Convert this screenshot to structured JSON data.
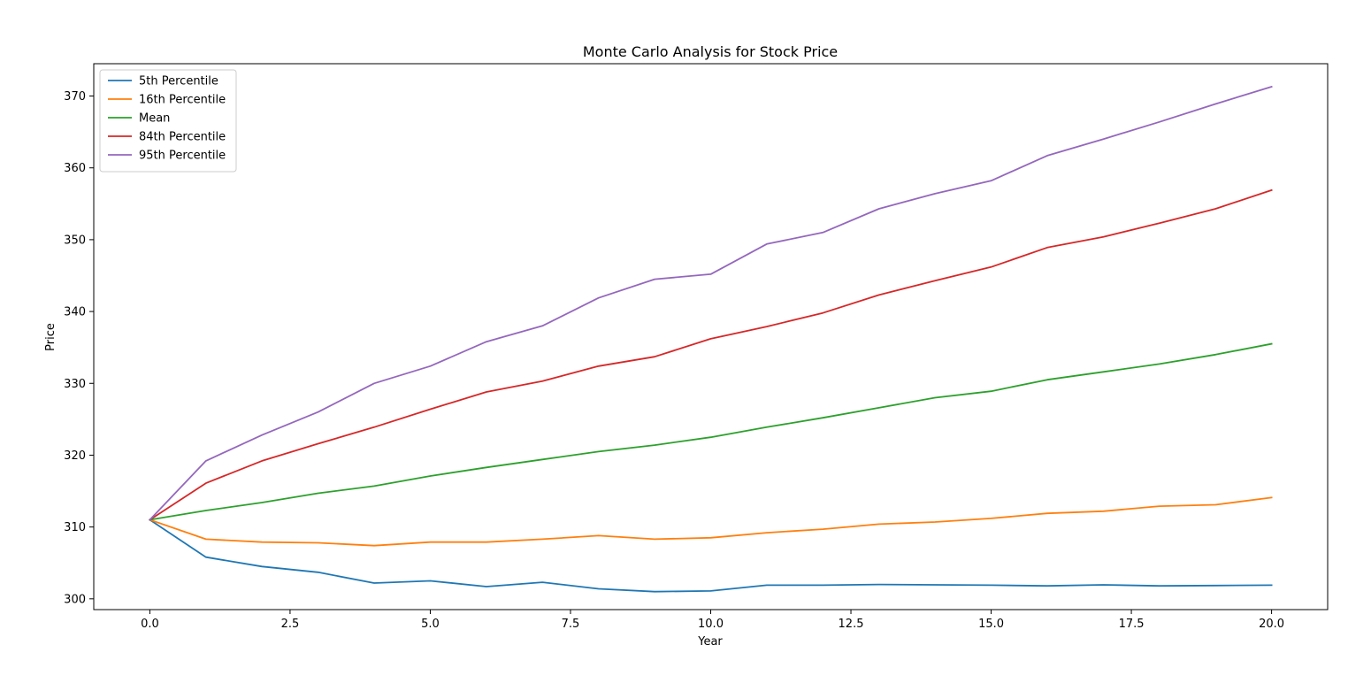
{
  "chart_data": {
    "type": "line",
    "title": "Monte Carlo Analysis for Stock Price",
    "xlabel": "Year",
    "ylabel": "Price",
    "xlim": [
      -1.0,
      21.0
    ],
    "ylim": [
      298.5,
      374.5
    ],
    "xticks": [
      0.0,
      2.5,
      5.0,
      7.5,
      10.0,
      12.5,
      15.0,
      17.5,
      20.0
    ],
    "xtick_labels": [
      "0.0",
      "2.5",
      "5.0",
      "7.5",
      "10.0",
      "12.5",
      "15.0",
      "17.5",
      "20.0"
    ],
    "yticks": [
      300,
      310,
      320,
      330,
      340,
      350,
      360,
      370
    ],
    "ytick_labels": [
      "300",
      "310",
      "320",
      "330",
      "340",
      "350",
      "360",
      "370"
    ],
    "grid": false,
    "legend_position": "top-left",
    "x": [
      0,
      1,
      2,
      3,
      4,
      5,
      6,
      7,
      8,
      9,
      10,
      11,
      12,
      13,
      14,
      15,
      16,
      17,
      18,
      19,
      20
    ],
    "series": [
      {
        "name": "5th Percentile",
        "color": "#1f77b4",
        "values": [
          311.0,
          305.8,
          304.5,
          303.7,
          302.2,
          302.5,
          301.7,
          302.3,
          301.4,
          301.0,
          301.1,
          301.9,
          301.9,
          302.0,
          301.95,
          301.9,
          301.8,
          301.95,
          301.8,
          301.85,
          301.9
        ]
      },
      {
        "name": "16th Percentile",
        "color": "#ff7f0e",
        "values": [
          311.0,
          308.3,
          307.9,
          307.8,
          307.4,
          307.9,
          307.9,
          308.3,
          308.8,
          308.3,
          308.5,
          309.2,
          309.7,
          310.4,
          310.7,
          311.2,
          311.9,
          312.2,
          312.9,
          313.1,
          314.1
        ]
      },
      {
        "name": "Mean",
        "color": "#2ca02c",
        "values": [
          311.0,
          312.3,
          313.4,
          314.7,
          315.7,
          317.1,
          318.3,
          319.4,
          320.5,
          321.4,
          322.5,
          323.9,
          325.2,
          326.6,
          328.0,
          328.9,
          330.5,
          331.6,
          332.7,
          334.0,
          335.5
        ]
      },
      {
        "name": "84th Percentile",
        "color": "#d62728",
        "values": [
          311.0,
          316.1,
          319.2,
          321.6,
          323.9,
          326.4,
          328.8,
          330.3,
          332.4,
          333.7,
          336.2,
          337.9,
          339.8,
          342.3,
          344.3,
          346.2,
          348.9,
          350.4,
          352.3,
          354.3,
          356.9
        ]
      },
      {
        "name": "95th Percentile",
        "color": "#9467bd",
        "values": [
          311.0,
          319.2,
          322.8,
          326.0,
          330.0,
          332.4,
          335.8,
          338.0,
          341.9,
          344.5,
          345.2,
          349.4,
          351.0,
          354.3,
          356.4,
          358.2,
          361.7,
          364.0,
          366.4,
          368.9,
          371.3
        ]
      }
    ]
  }
}
